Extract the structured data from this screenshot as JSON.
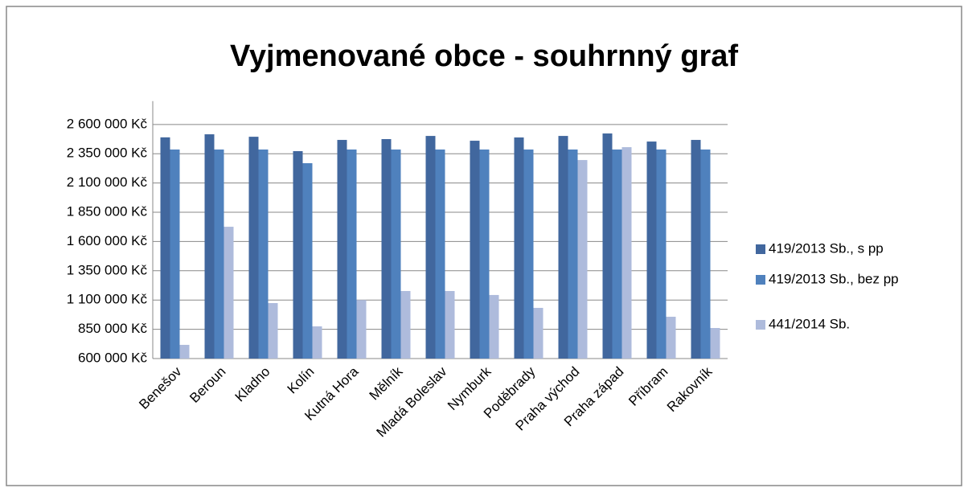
{
  "chart_data": {
    "type": "bar",
    "title": "Vyjmenované obce - souhrnný graf",
    "categories": [
      "Benešov",
      "Beroun",
      "Kladno",
      "Kolín",
      "Kutná Hora",
      "Mělník",
      "Mladá Boleslav",
      "Nymburk",
      "Poděbrady",
      "Praha východ",
      "Praha západ",
      "Příbram",
      "Rakovník"
    ],
    "series": [
      {
        "name": "419/2013 Sb., s pp",
        "color": "#41679e",
        "values": [
          2490000,
          2516000,
          2495000,
          2372000,
          2468000,
          2475000,
          2502000,
          2461000,
          2489000,
          2502000,
          2523000,
          2454000,
          2468000
        ]
      },
      {
        "name": "419/2013 Sb., bez pp",
        "color": "#4f81bd",
        "values": [
          2386000,
          2386000,
          2386000,
          2269000,
          2386000,
          2386000,
          2386000,
          2386000,
          2386000,
          2386000,
          2386000,
          2386000,
          2386000
        ]
      },
      {
        "name": "441/2014 Sb.",
        "color": "#aebbdc",
        "values": [
          717000,
          1726000,
          1074000,
          875000,
          1100000,
          1177000,
          1177000,
          1143000,
          1033000,
          2296000,
          2406000,
          957000,
          861000
        ]
      }
    ],
    "ylim": [
      600000,
      2800000
    ],
    "yticks": [
      {
        "value": 600000,
        "label": "600 000 Kč"
      },
      {
        "value": 850000,
        "label": "850 000 Kč"
      },
      {
        "value": 1100000,
        "label": "1 100 000 Kč"
      },
      {
        "value": 1350000,
        "label": "1 350 000 Kč"
      },
      {
        "value": 1600000,
        "label": "1 600 000 Kč"
      },
      {
        "value": 1850000,
        "label": "1 850 000 Kč"
      },
      {
        "value": 2100000,
        "label": "2 100 000 Kč"
      },
      {
        "value": 2350000,
        "label": "2 350 000 Kč"
      },
      {
        "value": 2600000,
        "label": "2 600 000 Kč"
      }
    ],
    "grid": true,
    "legend": "right"
  }
}
